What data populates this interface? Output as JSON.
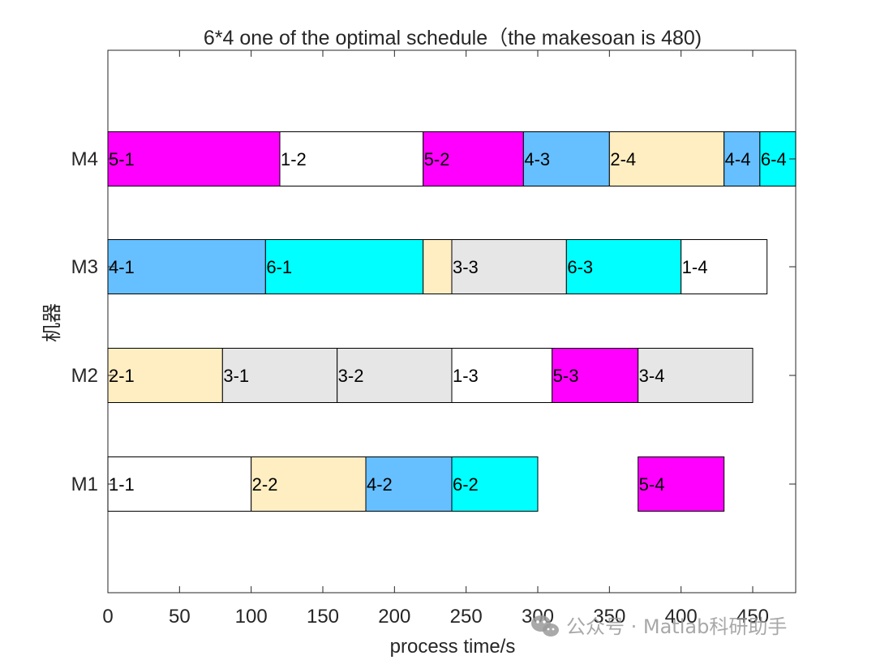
{
  "chart_data": {
    "type": "gantt",
    "title": "6*4 one of the optimal schedule（the makesoan is 480)",
    "xlabel": "process time/s",
    "ylabel": "机器",
    "xlim": [
      0,
      480
    ],
    "xticks": [
      0,
      50,
      100,
      150,
      200,
      250,
      300,
      350,
      400,
      450
    ],
    "machines": [
      "M1",
      "M2",
      "M3",
      "M4"
    ],
    "job_colors": {
      "1": "#ffffff",
      "2": "#ffeec2",
      "3": "#e6e6e6",
      "4": "#66bfff",
      "5": "#ff00ff",
      "6": "#00ffff"
    },
    "tasks": [
      {
        "machine": "M4",
        "label": "5-1",
        "job": "5",
        "start": 0,
        "end": 120
      },
      {
        "machine": "M4",
        "label": "1-2",
        "job": "1",
        "start": 120,
        "end": 220
      },
      {
        "machine": "M4",
        "label": "5-2",
        "job": "5",
        "start": 220,
        "end": 290
      },
      {
        "machine": "M4",
        "label": "4-3",
        "job": "4",
        "start": 290,
        "end": 350
      },
      {
        "machine": "M4",
        "label": "2-4",
        "job": "2",
        "start": 350,
        "end": 430
      },
      {
        "machine": "M4",
        "label": "4-4",
        "job": "4",
        "start": 430,
        "end": 455
      },
      {
        "machine": "M4",
        "label": "6-4",
        "job": "6",
        "start": 455,
        "end": 480
      },
      {
        "machine": "M3",
        "label": "4-1",
        "job": "4",
        "start": 0,
        "end": 110
      },
      {
        "machine": "M3",
        "label": "6-1",
        "job": "6",
        "start": 110,
        "end": 220
      },
      {
        "machine": "M3",
        "label": "",
        "job": "2",
        "start": 220,
        "end": 240
      },
      {
        "machine": "M3",
        "label": "3-3",
        "job": "3",
        "start": 240,
        "end": 320
      },
      {
        "machine": "M3",
        "label": "6-3",
        "job": "6",
        "start": 320,
        "end": 400
      },
      {
        "machine": "M3",
        "label": "1-4",
        "job": "1",
        "start": 400,
        "end": 460
      },
      {
        "machine": "M2",
        "label": "2-1",
        "job": "2",
        "start": 0,
        "end": 80
      },
      {
        "machine": "M2",
        "label": "3-1",
        "job": "3",
        "start": 80,
        "end": 160
      },
      {
        "machine": "M2",
        "label": "3-2",
        "job": "3",
        "start": 160,
        "end": 240
      },
      {
        "machine": "M2",
        "label": "1-3",
        "job": "1",
        "start": 240,
        "end": 310
      },
      {
        "machine": "M2",
        "label": "5-3",
        "job": "5",
        "start": 310,
        "end": 370
      },
      {
        "machine": "M2",
        "label": "3-4",
        "job": "3",
        "start": 370,
        "end": 450
      },
      {
        "machine": "M1",
        "label": "1-1",
        "job": "1",
        "start": 0,
        "end": 100
      },
      {
        "machine": "M1",
        "label": "2-2",
        "job": "2",
        "start": 100,
        "end": 180
      },
      {
        "machine": "M1",
        "label": "4-2",
        "job": "4",
        "start": 180,
        "end": 240
      },
      {
        "machine": "M1",
        "label": "6-2",
        "job": "6",
        "start": 240,
        "end": 300
      },
      {
        "machine": "M1",
        "label": "5-4",
        "job": "5",
        "start": 370,
        "end": 430
      }
    ]
  },
  "watermark": {
    "icon": "wechat-icon",
    "text": "公众号 · Matlab科研助手"
  }
}
